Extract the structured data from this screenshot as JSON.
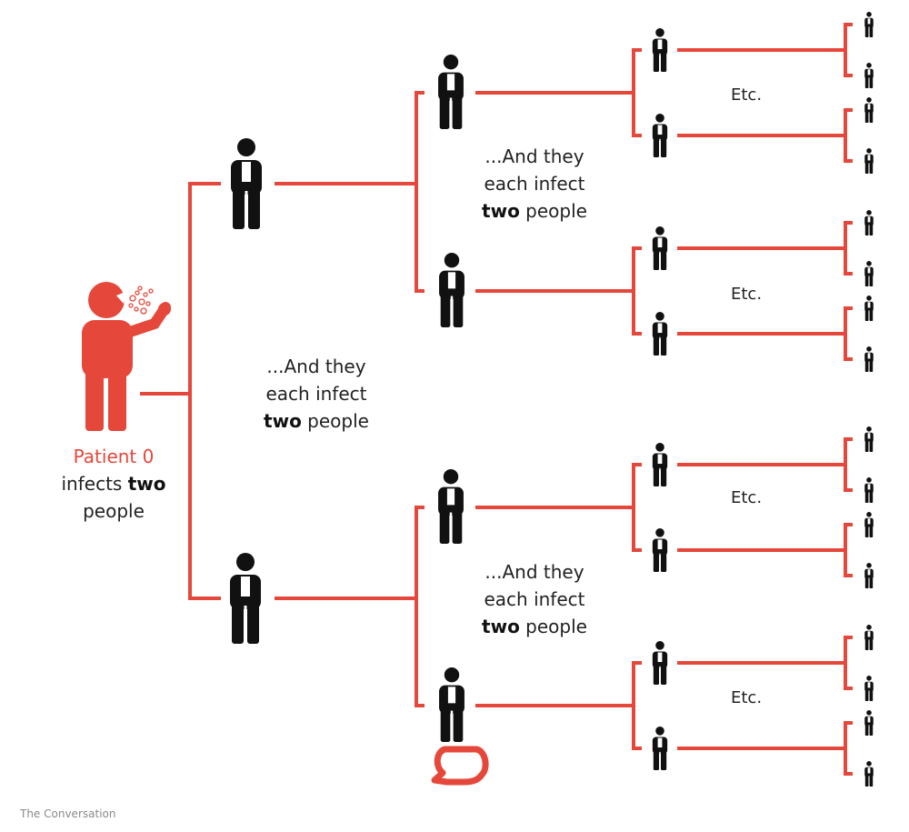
{
  "colors": {
    "accent": "#e5483b",
    "person": "#111111",
    "text": "#222222"
  },
  "icons": [
    "person-icon",
    "sneezing-person-icon",
    "speech-bubble-logo-icon"
  ],
  "patient": {
    "label": "Patient 0",
    "line_pre": "infects ",
    "line_bold": "two",
    "line_post": "people"
  },
  "gen_text": {
    "line1": "...And they",
    "line2": "each infect",
    "bold": "two",
    "post": " people"
  },
  "etc_label": "Etc.",
  "credit": "The Conversation"
}
